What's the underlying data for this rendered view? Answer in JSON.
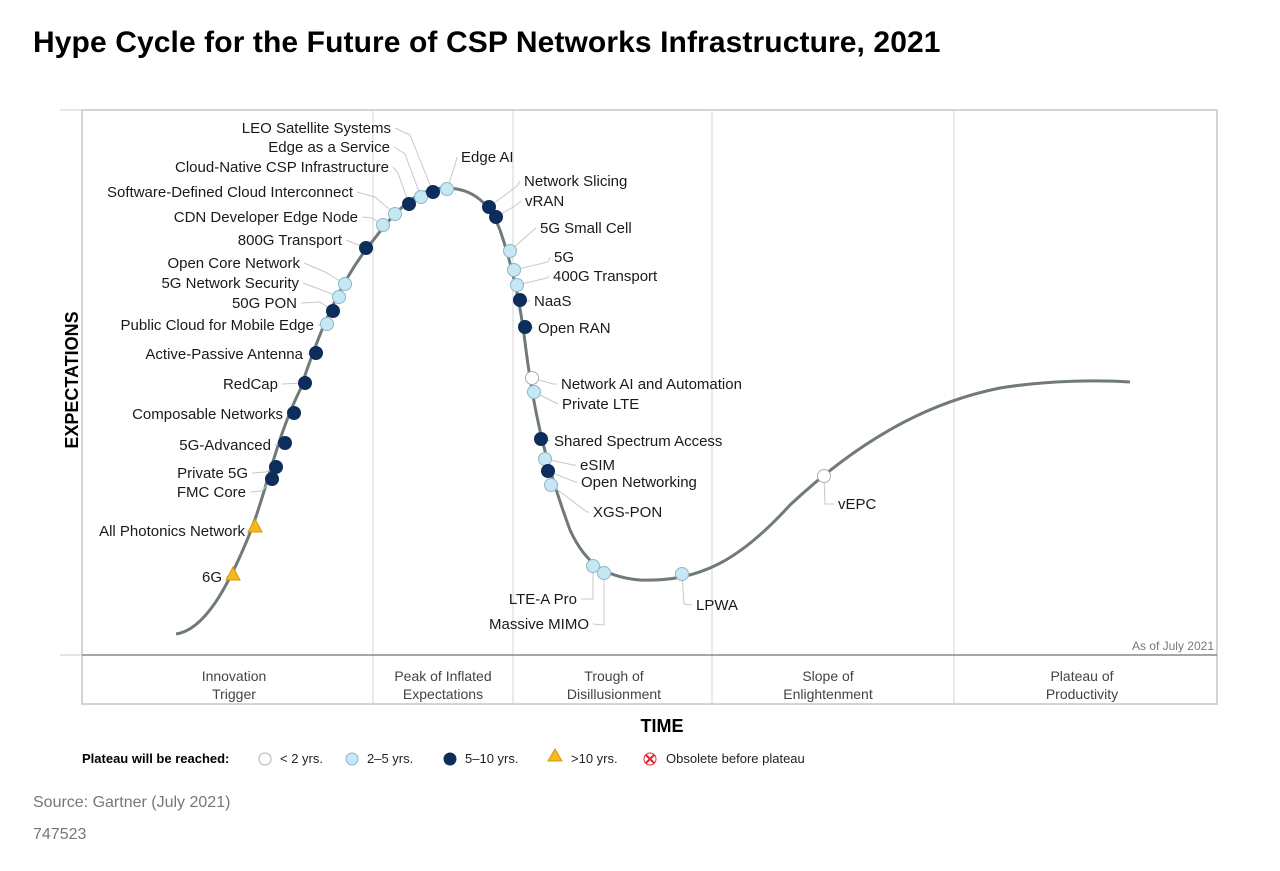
{
  "title": "Hype Cycle for the Future of CSP Networks Infrastructure, 2021",
  "chart_data": {
    "type": "hype-cycle",
    "y_axis_label": "EXPECTATIONS",
    "x_axis_label": "TIME",
    "as_of": "As of July 2021",
    "phases": [
      [
        "Innovation",
        "Trigger"
      ],
      [
        "Peak of Inflated",
        "Expectations"
      ],
      [
        "Trough of",
        "Disillusionment"
      ],
      [
        "Slope of",
        "Enlightenment"
      ],
      [
        "Plateau of",
        "Productivity"
      ]
    ],
    "legend": {
      "title": "Plateau will be reached:",
      "items": [
        {
          "key": "lt2",
          "label": "< 2 yrs."
        },
        {
          "key": "2to5",
          "label": "2–5 yrs."
        },
        {
          "key": "5to10",
          "label": "5–10 yrs."
        },
        {
          "key": "gt10",
          "label": ">10 yrs."
        },
        {
          "key": "obsolete",
          "label": "Obsolete before plateau"
        }
      ]
    },
    "category_colors": {
      "lt2": "#ffffff",
      "2to5": "#c6e8f5",
      "5to10": "#0d2e5c",
      "gt10": "#f5b820",
      "obsolete": "#e0262a"
    },
    "technologies": [
      {
        "name": "6G",
        "category": "gt10"
      },
      {
        "name": "All Photonics Network",
        "category": "gt10"
      },
      {
        "name": "FMC Core",
        "category": "5to10"
      },
      {
        "name": "Private 5G",
        "category": "5to10"
      },
      {
        "name": "5G-Advanced",
        "category": "5to10"
      },
      {
        "name": "Composable Networks",
        "category": "5to10"
      },
      {
        "name": "RedCap",
        "category": "5to10"
      },
      {
        "name": "Active-Passive Antenna",
        "category": "5to10"
      },
      {
        "name": "Public Cloud for Mobile Edge",
        "category": "2to5"
      },
      {
        "name": "50G PON",
        "category": "5to10"
      },
      {
        "name": "5G Network Security",
        "category": "2to5"
      },
      {
        "name": "Open Core Network",
        "category": "2to5"
      },
      {
        "name": "800G Transport",
        "category": "5to10"
      },
      {
        "name": "CDN Developer Edge Node",
        "category": "2to5"
      },
      {
        "name": "Software-Defined Cloud Interconnect",
        "category": "2to5"
      },
      {
        "name": "Cloud-Native CSP Infrastructure",
        "category": "5to10"
      },
      {
        "name": "Edge as a Service",
        "category": "2to5"
      },
      {
        "name": "LEO Satellite Systems",
        "category": "5to10"
      },
      {
        "name": "Edge AI",
        "category": "2to5"
      },
      {
        "name": "Network Slicing",
        "category": "5to10"
      },
      {
        "name": "vRAN",
        "category": "5to10"
      },
      {
        "name": "5G Small Cell",
        "category": "2to5"
      },
      {
        "name": "5G",
        "category": "2to5"
      },
      {
        "name": "400G Transport",
        "category": "2to5"
      },
      {
        "name": "NaaS",
        "category": "5to10"
      },
      {
        "name": "Open RAN",
        "category": "5to10"
      },
      {
        "name": "Network AI and Automation",
        "category": "lt2"
      },
      {
        "name": "Private LTE",
        "category": "2to5"
      },
      {
        "name": "Shared Spectrum Access",
        "category": "5to10"
      },
      {
        "name": "eSIM",
        "category": "2to5"
      },
      {
        "name": "Open Networking",
        "category": "5to10"
      },
      {
        "name": "XGS-PON",
        "category": "2to5"
      },
      {
        "name": "LTE-A Pro",
        "category": "2to5"
      },
      {
        "name": "Massive MIMO",
        "category": "2to5"
      },
      {
        "name": "LPWA",
        "category": "2to5"
      },
      {
        "name": "vEPC",
        "category": "lt2"
      }
    ]
  },
  "source": "Source: Gartner (July 2021)",
  "doc_id": "747523"
}
